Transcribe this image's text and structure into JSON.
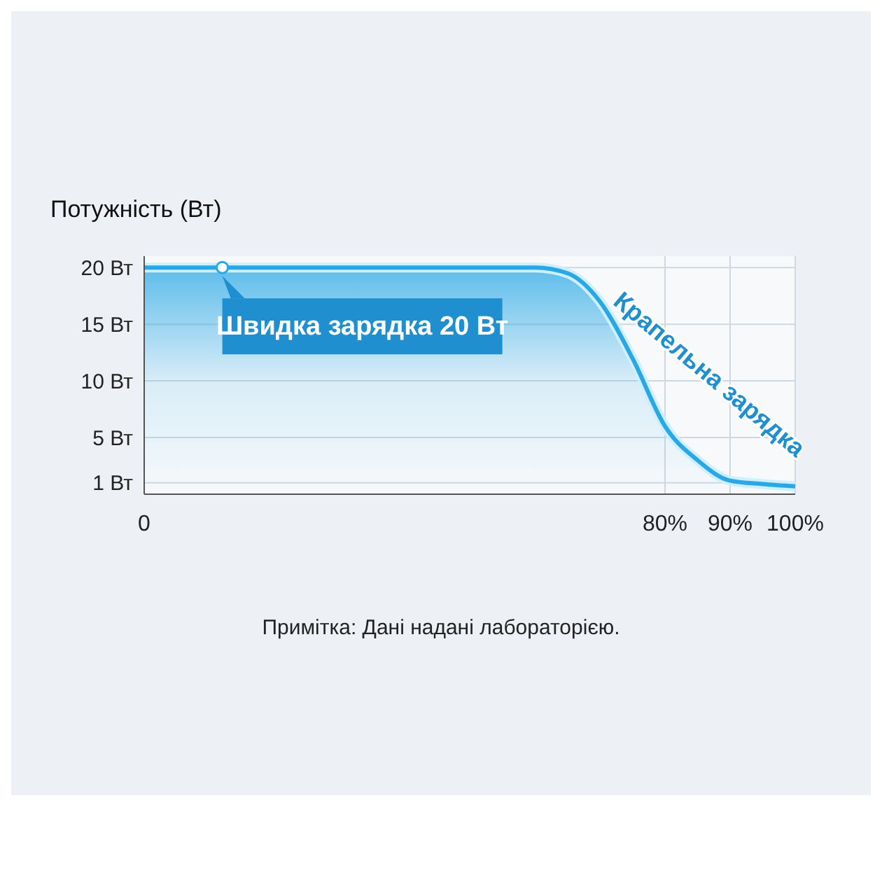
{
  "chart_data": {
    "type": "area",
    "ylabel": "Потужність (Вт)",
    "x": [
      0,
      60,
      65,
      70,
      75,
      80,
      85,
      90,
      95,
      100
    ],
    "series": [
      {
        "color": "#2aa8e6",
        "values": [
          20,
          20,
          19.5,
          17,
          12,
          6,
          3,
          1.2,
          0.9,
          0.7
        ]
      }
    ],
    "xlim": [
      0,
      100
    ],
    "xticks": [
      0,
      {
        "value": 80,
        "label": "80%"
      },
      {
        "value": 90,
        "label": "90%"
      },
      {
        "value": 100,
        "label": "100%"
      }
    ],
    "ylim": [
      0,
      21
    ],
    "yticks": [
      {
        "value": 20,
        "label": "20 Вт"
      },
      {
        "value": 15,
        "label": "15 Вт"
      },
      {
        "value": 10,
        "label": "10 Вт"
      },
      {
        "value": 5,
        "label": "5 Вт"
      },
      {
        "value": 1,
        "label": "1 Вт"
      }
    ],
    "grid": true,
    "marker": "none",
    "annotations": [
      {
        "text": "Швидка зарядка 20 Вт",
        "x": 12,
        "y": 20
      },
      "Крапельна зарядка",
      "Примітка: Дані надані лабораторією."
    ]
  }
}
